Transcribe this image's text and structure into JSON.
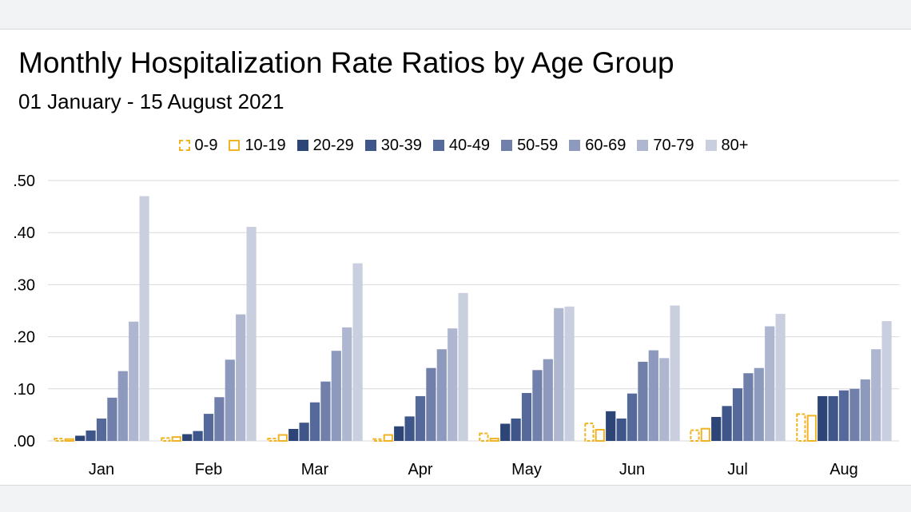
{
  "chart_data": {
    "type": "bar",
    "title": "Monthly Hospitalization Rate Ratios by Age Group",
    "subtitle": "01 January - 15 August 2021",
    "xlabel": "",
    "ylabel": "",
    "ylim": [
      0,
      0.5
    ],
    "yticks": [
      {
        "value": 0.0,
        "label": ".00"
      },
      {
        "value": 0.1,
        "label": ".10"
      },
      {
        "value": 0.2,
        "label": ".20"
      },
      {
        "value": 0.3,
        "label": ".30"
      },
      {
        "value": 0.4,
        "label": ".40"
      },
      {
        "value": 0.5,
        "label": ".50"
      }
    ],
    "grid": true,
    "legend_position": "top-center",
    "categories": [
      "Jan",
      "Feb",
      "Mar",
      "Apr",
      "May",
      "Jun",
      "Jul",
      "Aug"
    ],
    "series": [
      {
        "name": "0-9",
        "color": "#f0b323",
        "style": "dashed-outline",
        "values": [
          0.006,
          0.007,
          0.006,
          0.005,
          0.016,
          0.035,
          0.022,
          0.053
        ]
      },
      {
        "name": "10-19",
        "color": "#f0b323",
        "style": "outline",
        "values": [
          0.005,
          0.009,
          0.013,
          0.013,
          0.006,
          0.023,
          0.025,
          0.05
        ]
      },
      {
        "name": "20-29",
        "color": "#2c4476",
        "style": "solid",
        "values": [
          0.01,
          0.013,
          0.023,
          0.028,
          0.033,
          0.057,
          0.046,
          0.086
        ]
      },
      {
        "name": "30-39",
        "color": "#3e5689",
        "style": "solid",
        "values": [
          0.02,
          0.019,
          0.035,
          0.047,
          0.043,
          0.043,
          0.067,
          0.086
        ]
      },
      {
        "name": "40-49",
        "color": "#55699b",
        "style": "solid",
        "values": [
          0.043,
          0.052,
          0.074,
          0.086,
          0.092,
          0.091,
          0.101,
          0.097
        ]
      },
      {
        "name": "50-59",
        "color": "#717fab",
        "style": "solid",
        "values": [
          0.083,
          0.084,
          0.114,
          0.14,
          0.136,
          0.152,
          0.13,
          0.1
        ]
      },
      {
        "name": "60-69",
        "color": "#8d99bd",
        "style": "solid",
        "values": [
          0.134,
          0.156,
          0.173,
          0.176,
          0.157,
          0.174,
          0.14,
          0.118
        ]
      },
      {
        "name": "70-79",
        "color": "#aeb7cf",
        "style": "solid",
        "values": [
          0.229,
          0.243,
          0.218,
          0.216,
          0.255,
          0.159,
          0.22,
          0.176
        ]
      },
      {
        "name": "80+",
        "color": "#c9cfdf",
        "style": "solid",
        "values": [
          0.47,
          0.411,
          0.341,
          0.284,
          0.258,
          0.26,
          0.244,
          0.23
        ]
      }
    ]
  }
}
